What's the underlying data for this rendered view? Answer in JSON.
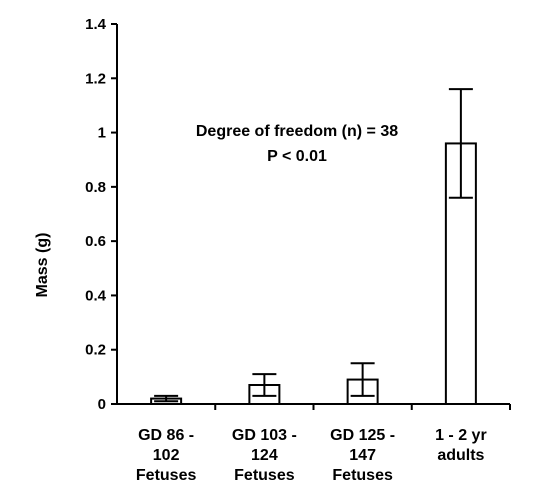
{
  "chart_data": {
    "type": "bar",
    "title": "",
    "xlabel": "",
    "ylabel": "Mass (g)",
    "ylim": [
      0,
      1.4
    ],
    "yticks": [
      0,
      0.2,
      0.4,
      0.6,
      0.8,
      1,
      1.2,
      1.4
    ],
    "ytick_labels": [
      "0",
      "0.2",
      "0.4",
      "0.6",
      "0.8",
      "1",
      "1.2",
      "1.4"
    ],
    "categories": [
      [
        "GD 86 -",
        "102",
        "Fetuses"
      ],
      [
        "GD 103 -",
        "124",
        "Fetuses"
      ],
      [
        "GD 125 -",
        "147",
        "Fetuses"
      ],
      [
        "1 - 2 yr",
        "adults"
      ]
    ],
    "values": [
      0.02,
      0.07,
      0.09,
      0.96
    ],
    "errors": [
      0.01,
      0.04,
      0.06,
      0.2
    ],
    "annotations": [
      "Degree of freedom (n) = 38",
      "P < 0.01"
    ],
    "bar_fill": "#ffffff",
    "stroke_color": "#000000",
    "grid": false,
    "legend": "none"
  }
}
